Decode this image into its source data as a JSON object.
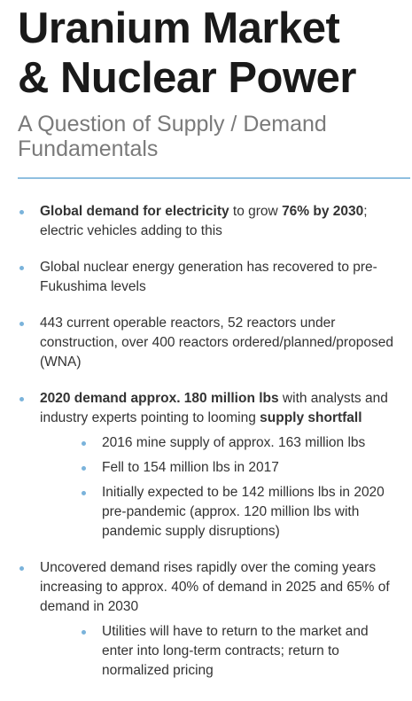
{
  "title": [
    "Uranium Market",
    "& Nuclear Power"
  ],
  "subtitle": "A Question of Supply / Demand Fundamentals",
  "bullets": [
    {
      "segments": [
        {
          "text": "Global demand for electricity",
          "bold": true
        },
        {
          "text": " to grow ",
          "bold": false
        },
        {
          "text": "76% by 2030",
          "bold": true
        },
        {
          "text": "; electric vehicles adding to this",
          "bold": false
        }
      ]
    },
    {
      "segments": [
        {
          "text": "Global nuclear energy generation has recovered to pre-Fukushima levels",
          "bold": false
        }
      ]
    },
    {
      "segments": [
        {
          "text": "443 current operable reactors, 52 reactors under construction, over 400 reactors ordered/planned/proposed (WNA)",
          "bold": false
        }
      ]
    },
    {
      "segments": [
        {
          "text": "2020 demand approx. 180 million lbs",
          "bold": true
        },
        {
          "text": " with analysts and industry experts pointing to looming ",
          "bold": false
        },
        {
          "text": "supply shortfall",
          "bold": true
        }
      ],
      "subitems": [
        "2016 mine supply of approx. 163 million lbs",
        "Fell to 154 million lbs in 2017",
        "Initially expected to be 142 millions lbs in 2020 pre-pandemic (approx. 120 million lbs with pandemic supply disruptions)"
      ]
    },
    {
      "segments": [
        {
          "text": "Uncovered demand rises rapidly over the coming years increasing to approx. 40% of demand in 2025 and 65% of demand in 2030",
          "bold": false
        }
      ],
      "subitems": [
        "Utilities will have to return to the market and enter into long-term contracts; return to normalized pricing"
      ]
    }
  ]
}
